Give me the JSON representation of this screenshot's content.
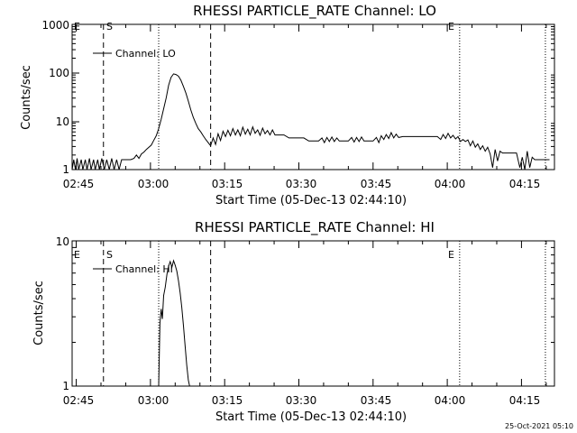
{
  "chart_data": [
    {
      "type": "line",
      "title": "RHESSI PARTICLE_RATE Channel: LO",
      "xlabel": "Start Time (05-Dec-13 02:44:10)",
      "ylabel": "Counts/sec",
      "yscale": "log",
      "ylim": [
        1,
        1000
      ],
      "ytick_labels": [
        "1",
        "10",
        "100",
        "1000"
      ],
      "xlim": [
        "02:44:10",
        "04:21:40"
      ],
      "xtick_labels": [
        "02:45",
        "03:00",
        "03:15",
        "03:30",
        "03:45",
        "04:00",
        "04:15"
      ],
      "legend": {
        "label": "Channel: LO",
        "position": "top-left"
      },
      "markers": [
        {
          "label": "E",
          "time": "02:44:10",
          "style": "dotted"
        },
        {
          "label": "S",
          "time": "02:50:30",
          "style": "dashed"
        },
        {
          "time": "03:01:40",
          "style": "dotted"
        },
        {
          "time": "03:12:10",
          "style": "dashed"
        },
        {
          "label": "E",
          "time": "04:02:30",
          "style": "dotted"
        },
        {
          "time": "04:19:50",
          "style": "dotted"
        }
      ],
      "series": [
        {
          "name": "Channel: LO",
          "points": [
            [
              "02:44:10",
              1
            ],
            [
              "02:44:30",
              1.6
            ],
            [
              "02:44:50",
              1
            ],
            [
              "02:45:10",
              1.7
            ],
            [
              "02:45:30",
              1
            ],
            [
              "02:46:00",
              1.6
            ],
            [
              "02:46:20",
              1
            ],
            [
              "02:46:50",
              1.6
            ],
            [
              "02:47:10",
              1
            ],
            [
              "02:47:40",
              1.7
            ],
            [
              "02:48:00",
              1
            ],
            [
              "02:48:30",
              1.6
            ],
            [
              "02:48:50",
              1
            ],
            [
              "02:49:20",
              1.6
            ],
            [
              "02:49:40",
              1
            ],
            [
              "02:50:10",
              1.7
            ],
            [
              "02:50:40",
              1
            ],
            [
              "02:51:10",
              1.6
            ],
            [
              "02:51:40",
              1
            ],
            [
              "02:52:10",
              1.7
            ],
            [
              "02:52:40",
              1
            ],
            [
              "02:53:10",
              1.6
            ],
            [
              "02:53:40",
              1
            ],
            [
              "02:54:10",
              1.6
            ],
            [
              "02:54:40",
              1.6
            ],
            [
              "02:55:10",
              1.6
            ],
            [
              "02:56:00",
              1.6
            ],
            [
              "02:56:40",
              1.7
            ],
            [
              "02:57:10",
              2
            ],
            [
              "02:57:40",
              1.7
            ],
            [
              "02:58:10",
              2.1
            ],
            [
              "02:58:40",
              2.3
            ],
            [
              "02:59:10",
              2.6
            ],
            [
              "02:59:40",
              2.9
            ],
            [
              "03:00:10",
              3.2
            ],
            [
              "03:00:40",
              4
            ],
            [
              "03:01:10",
              5
            ],
            [
              "03:01:40",
              7
            ],
            [
              "03:02:10",
              11
            ],
            [
              "03:02:40",
              18
            ],
            [
              "03:03:10",
              30
            ],
            [
              "03:03:40",
              55
            ],
            [
              "03:04:10",
              80
            ],
            [
              "03:04:40",
              95
            ],
            [
              "03:05:10",
              92
            ],
            [
              "03:05:40",
              85
            ],
            [
              "03:06:10",
              70
            ],
            [
              "03:06:40",
              52
            ],
            [
              "03:07:10",
              38
            ],
            [
              "03:07:40",
              26
            ],
            [
              "03:08:10",
              17
            ],
            [
              "03:08:40",
              12
            ],
            [
              "03:09:10",
              9
            ],
            [
              "03:09:40",
              7
            ],
            [
              "03:10:10",
              6
            ],
            [
              "03:10:40",
              5
            ],
            [
              "03:11:10",
              4.2
            ],
            [
              "03:11:40",
              3.6
            ],
            [
              "03:12:10",
              3.1
            ],
            [
              "03:12:40",
              4.5
            ],
            [
              "03:13:10",
              3.3
            ],
            [
              "03:13:40",
              5.5
            ],
            [
              "03:14:10",
              4
            ],
            [
              "03:14:40",
              6.2
            ],
            [
              "03:15:10",
              4.8
            ],
            [
              "03:15:40",
              6.5
            ],
            [
              "03:16:10",
              5
            ],
            [
              "03:16:40",
              7
            ],
            [
              "03:17:10",
              5.2
            ],
            [
              "03:17:40",
              6.6
            ],
            [
              "03:18:10",
              5
            ],
            [
              "03:18:40",
              7.5
            ],
            [
              "03:19:10",
              5.4
            ],
            [
              "03:19:40",
              6.8
            ],
            [
              "03:20:10",
              5.2
            ],
            [
              "03:20:40",
              7.6
            ],
            [
              "03:21:10",
              5.6
            ],
            [
              "03:21:40",
              6.6
            ],
            [
              "03:22:10",
              5.1
            ],
            [
              "03:22:40",
              7.2
            ],
            [
              "03:23:10",
              5.5
            ],
            [
              "03:23:40",
              6.4
            ],
            [
              "03:24:10",
              5.2
            ],
            [
              "03:24:40",
              6.6
            ],
            [
              "03:25:10",
              5.2
            ],
            [
              "03:26:00",
              5.2
            ],
            [
              "03:27:00",
              5.2
            ],
            [
              "03:28:00",
              4.5
            ],
            [
              "03:29:00",
              4.5
            ],
            [
              "03:30:00",
              4.5
            ],
            [
              "03:31:00",
              4.5
            ],
            [
              "03:32:00",
              3.9
            ],
            [
              "03:33:00",
              3.9
            ],
            [
              "03:34:00",
              3.9
            ],
            [
              "03:34:40",
              4.5
            ],
            [
              "03:35:10",
              3.6
            ],
            [
              "03:35:40",
              4.6
            ],
            [
              "03:36:10",
              3.8
            ],
            [
              "03:36:40",
              4.7
            ],
            [
              "03:37:10",
              3.8
            ],
            [
              "03:37:40",
              4.5
            ],
            [
              "03:38:10",
              3.9
            ],
            [
              "03:39:00",
              3.9
            ],
            [
              "03:40:00",
              3.9
            ],
            [
              "03:40:40",
              4.6
            ],
            [
              "03:41:10",
              3.7
            ],
            [
              "03:41:40",
              4.6
            ],
            [
              "03:42:10",
              3.8
            ],
            [
              "03:42:40",
              4.7
            ],
            [
              "03:43:10",
              3.9
            ],
            [
              "03:44:00",
              3.9
            ],
            [
              "03:45:00",
              3.9
            ],
            [
              "03:45:40",
              4.6
            ],
            [
              "03:46:10",
              3.6
            ],
            [
              "03:46:40",
              5
            ],
            [
              "03:47:10",
              4.2
            ],
            [
              "03:47:40",
              5.3
            ],
            [
              "03:48:10",
              4.4
            ],
            [
              "03:48:40",
              5.8
            ],
            [
              "03:49:10",
              4.5
            ],
            [
              "03:49:40",
              5.4
            ],
            [
              "03:50:10",
              4.6
            ],
            [
              "03:51:00",
              4.8
            ],
            [
              "03:52:00",
              4.8
            ],
            [
              "03:53:00",
              4.8
            ],
            [
              "03:54:00",
              4.8
            ],
            [
              "03:55:00",
              4.8
            ],
            [
              "03:56:00",
              4.8
            ],
            [
              "03:57:00",
              4.8
            ],
            [
              "03:58:00",
              4.8
            ],
            [
              "03:58:40",
              4.2
            ],
            [
              "03:59:10",
              5.3
            ],
            [
              "03:59:40",
              4.4
            ],
            [
              "04:00:10",
              5.6
            ],
            [
              "04:00:40",
              4.5
            ],
            [
              "04:01:10",
              5.1
            ],
            [
              "04:01:40",
              4.3
            ],
            [
              "04:02:10",
              4.8
            ],
            [
              "04:02:40",
              3.8
            ],
            [
              "04:03:10",
              4.2
            ],
            [
              "04:03:40",
              3.8
            ],
            [
              "04:04:10",
              4.1
            ],
            [
              "04:04:40",
              3.1
            ],
            [
              "04:05:10",
              3.9
            ],
            [
              "04:05:40",
              2.9
            ],
            [
              "04:06:10",
              3.4
            ],
            [
              "04:06:40",
              2.6
            ],
            [
              "04:07:10",
              3.1
            ],
            [
              "04:07:40",
              2.4
            ],
            [
              "04:08:10",
              2.9
            ],
            [
              "04:08:40",
              2.1
            ],
            [
              "04:09:10",
              1.1
            ],
            [
              "04:09:40",
              2.6
            ],
            [
              "04:10:10",
              1.5
            ],
            [
              "04:10:40",
              2.4
            ],
            [
              "04:11:10",
              2.2
            ],
            [
              "04:12:00",
              2.2
            ],
            [
              "04:13:00",
              2.2
            ],
            [
              "04:14:00",
              2.2
            ],
            [
              "04:14:40",
              1.1
            ],
            [
              "04:15:10",
              1.8
            ],
            [
              "04:15:40",
              1
            ],
            [
              "04:16:10",
              2.4
            ],
            [
              "04:16:40",
              1.1
            ],
            [
              "04:17:10",
              1.8
            ],
            [
              "04:17:40",
              1.6
            ],
            [
              "04:18:40",
              1.6
            ],
            [
              "04:19:40",
              1.6
            ],
            [
              "04:20:40",
              1.6
            ]
          ]
        }
      ]
    },
    {
      "type": "line",
      "title": "RHESSI PARTICLE_RATE Channel: HI",
      "xlabel": "Start Time (05-Dec-13 02:44:10)",
      "ylabel": "Counts/sec",
      "yscale": "log",
      "ylim": [
        1,
        10
      ],
      "ytick_labels": [
        "1",
        "10"
      ],
      "xlim": [
        "02:44:10",
        "04:21:40"
      ],
      "xtick_labels": [
        "02:45",
        "03:00",
        "03:15",
        "03:30",
        "03:45",
        "04:00",
        "04:15"
      ],
      "legend": {
        "label": "Channel: HI",
        "position": "top-left"
      },
      "markers": [
        {
          "label": "E",
          "time": "02:44:10",
          "style": "dotted"
        },
        {
          "label": "S",
          "time": "02:50:30",
          "style": "dashed"
        },
        {
          "time": "03:01:40",
          "style": "dotted"
        },
        {
          "time": "03:12:10",
          "style": "dashed"
        },
        {
          "label": "E",
          "time": "04:02:30",
          "style": "dotted"
        },
        {
          "time": "04:19:50",
          "style": "dotted"
        }
      ],
      "series": [
        {
          "name": "Channel: HI",
          "points": [
            [
              "03:01:40",
              1
            ],
            [
              "03:01:55",
              2.7
            ],
            [
              "03:02:10",
              3.4
            ],
            [
              "03:02:25",
              2.9
            ],
            [
              "03:02:40",
              4.2
            ],
            [
              "03:03:00",
              4.8
            ],
            [
              "03:03:20",
              5.9
            ],
            [
              "03:03:40",
              6.7
            ],
            [
              "03:04:00",
              7.2
            ],
            [
              "03:04:20",
              6.6
            ],
            [
              "03:04:40",
              7.3
            ],
            [
              "03:05:00",
              6.8
            ],
            [
              "03:05:20",
              6.2
            ],
            [
              "03:05:40",
              5.3
            ],
            [
              "03:06:00",
              4.4
            ],
            [
              "03:06:20",
              3.5
            ],
            [
              "03:06:40",
              2.6
            ],
            [
              "03:07:00",
              1.9
            ],
            [
              "03:07:20",
              1.4
            ],
            [
              "03:07:40",
              1.1
            ],
            [
              "03:07:55",
              1
            ]
          ]
        }
      ]
    }
  ],
  "footer": {
    "timestamp": "25-Oct-2021 05:10"
  }
}
